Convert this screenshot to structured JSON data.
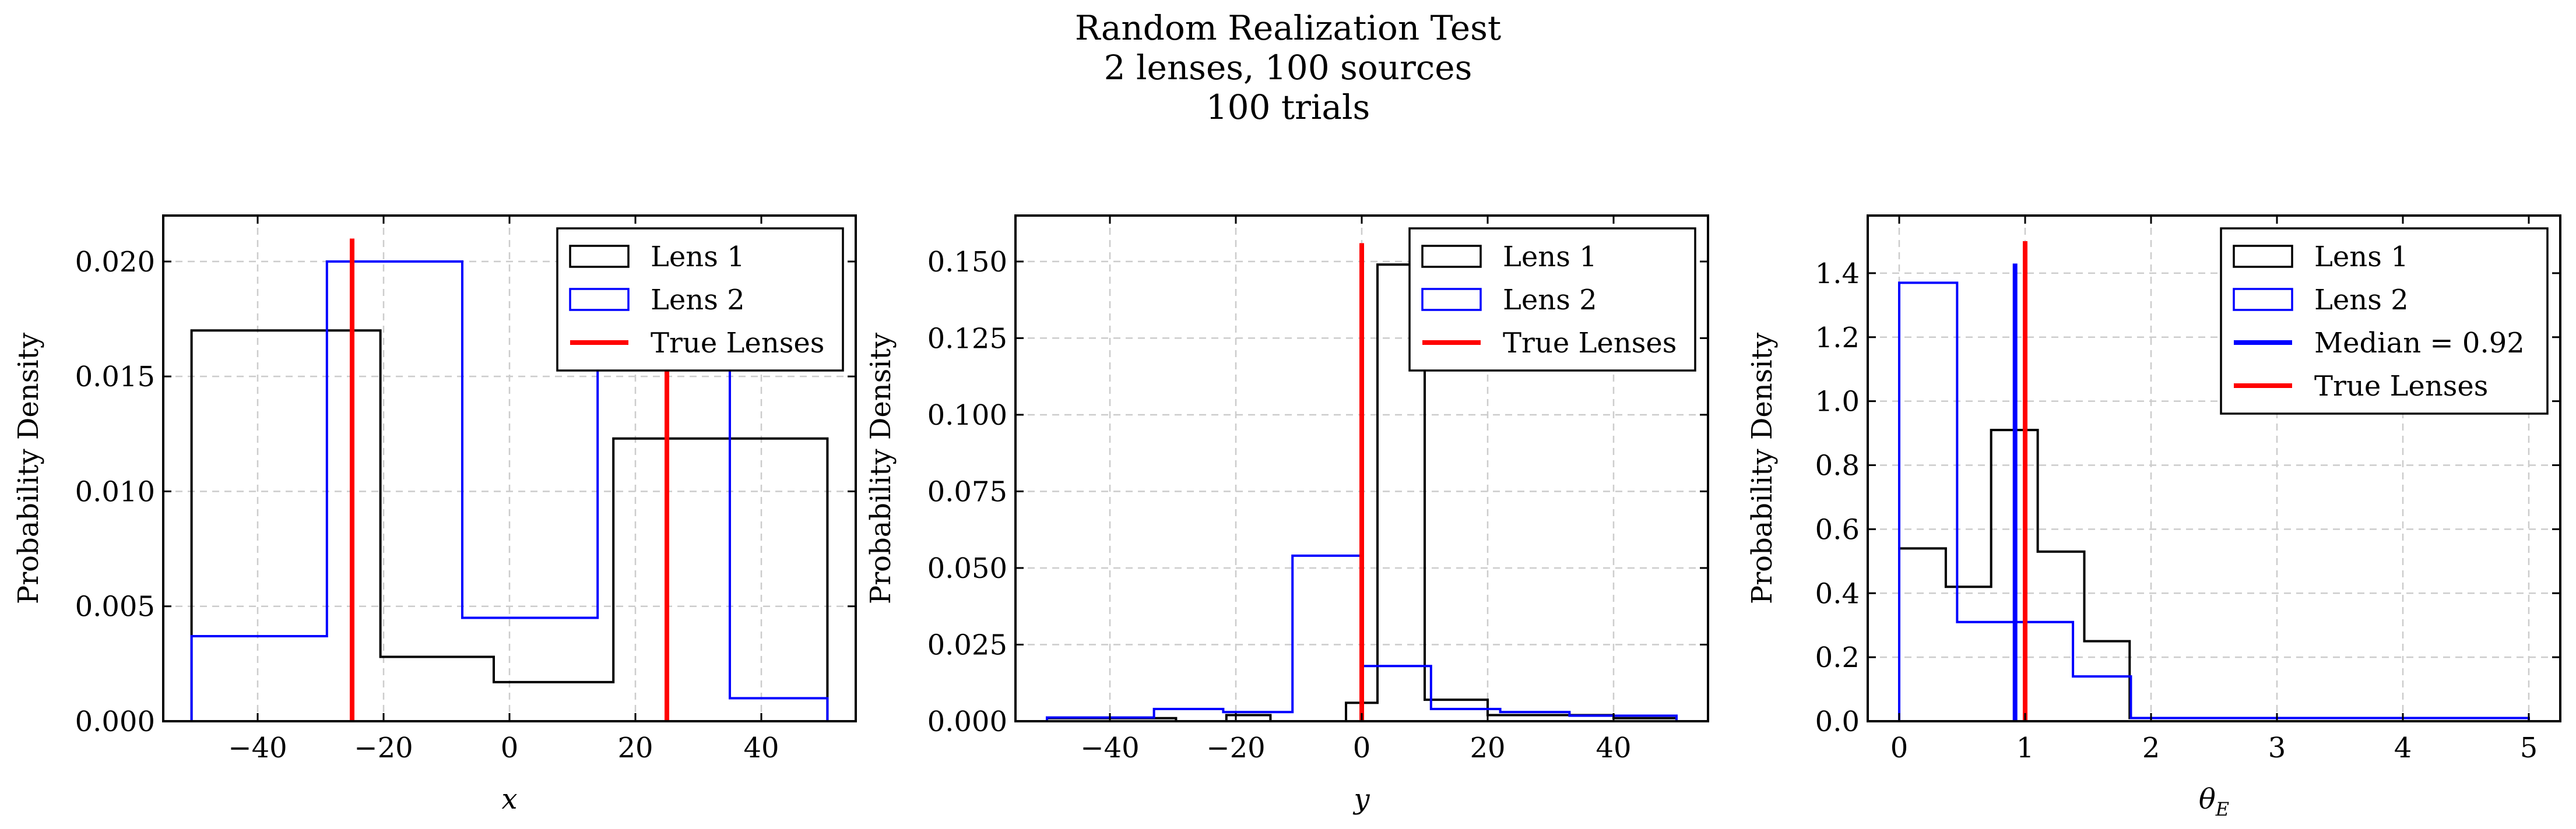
{
  "figure": {
    "title_lines": [
      "Random Realization Test",
      "2 lenses, 100 sources",
      "100 trials"
    ]
  },
  "chart_data": [
    {
      "type": "histogram",
      "xlabel": "x",
      "ylabel": "Probability Density",
      "xlim": [
        -55,
        55
      ],
      "ylim": [
        0,
        0.022
      ],
      "xticks": [
        -40,
        -20,
        0,
        20,
        40
      ],
      "xtick_labels": [
        "−40",
        "−20",
        "0",
        "20",
        "40"
      ],
      "yticks": [
        0,
        0.005,
        0.01,
        0.015,
        0.02
      ],
      "ytick_labels": [
        "0.000",
        "0.005",
        "0.010",
        "0.015",
        "0.020"
      ],
      "grid": true,
      "legend_position": "upper right",
      "series": [
        {
          "name": "Lens 1",
          "color": "#000000",
          "edges": [
            -50.5,
            -20.5,
            -2.5,
            16.5,
            50.5
          ],
          "values": [
            0.017,
            0.0028,
            0.0017,
            0.0123
          ]
        },
        {
          "name": "Lens 2",
          "color": "#0000ff",
          "edges": [
            -50.5,
            -29,
            -7.5,
            14,
            35,
            50.5
          ],
          "values": [
            0.0037,
            0.02,
            0.0045,
            0.02,
            0.001
          ]
        }
      ],
      "vlines": [
        {
          "name": "True Lenses",
          "color": "#ff0000",
          "x": [
            -25,
            25
          ],
          "ymax": 0.021
        }
      ],
      "legend": [
        {
          "label": "Lens 1",
          "kind": "patch",
          "color": "#000000"
        },
        {
          "label": "Lens 2",
          "kind": "patch",
          "color": "#0000ff"
        },
        {
          "label": "True Lenses",
          "kind": "line",
          "color": "#ff0000"
        }
      ]
    },
    {
      "type": "histogram",
      "xlabel": "y",
      "ylabel": "Probability Density",
      "xlim": [
        -55,
        55
      ],
      "ylim": [
        0,
        0.165
      ],
      "xticks": [
        -40,
        -20,
        0,
        20,
        40
      ],
      "xtick_labels": [
        "−40",
        "−20",
        "0",
        "20",
        "40"
      ],
      "yticks": [
        0,
        0.025,
        0.05,
        0.075,
        0.1,
        0.125,
        0.15
      ],
      "ytick_labels": [
        "0.000",
        "0.025",
        "0.050",
        "0.075",
        "0.100",
        "0.125",
        "0.150"
      ],
      "grid": true,
      "legend_position": "upper right",
      "series": [
        {
          "name": "Lens 1",
          "color": "#000000",
          "edges": [
            -50,
            -29.5,
            -21.5,
            -14.5,
            -2.5,
            2.5,
            10,
            20,
            30,
            40,
            50
          ],
          "values": [
            0.001,
            0.0,
            0.002,
            0.0,
            0.006,
            0.149,
            0.007,
            0.002,
            0.002,
            0.001
          ]
        },
        {
          "name": "Lens 2",
          "color": "#0000ff",
          "edges": [
            -50,
            -33,
            -22,
            -11,
            0,
            11,
            22,
            33,
            50
          ],
          "values": [
            0.0012,
            0.004,
            0.003,
            0.054,
            0.018,
            0.004,
            0.003,
            0.0018
          ]
        }
      ],
      "vlines": [
        {
          "name": "True Lenses",
          "color": "#ff0000",
          "x": [
            0
          ],
          "ymax": 0.156
        }
      ],
      "legend": [
        {
          "label": "Lens 1",
          "kind": "patch",
          "color": "#000000"
        },
        {
          "label": "Lens 2",
          "kind": "patch",
          "color": "#0000ff"
        },
        {
          "label": "True Lenses",
          "kind": "line",
          "color": "#ff0000"
        }
      ]
    },
    {
      "type": "histogram",
      "xlabel": "θE",
      "xlabel_main": "θ",
      "xlabel_sub": "E",
      "ylabel": "Probability Density",
      "xlim": [
        -0.25,
        5.25
      ],
      "ylim": [
        0,
        1.58
      ],
      "xticks": [
        0,
        1,
        2,
        3,
        4,
        5
      ],
      "xtick_labels": [
        "0",
        "1",
        "2",
        "3",
        "4",
        "5"
      ],
      "yticks": [
        0,
        0.2,
        0.4,
        0.6,
        0.8,
        1.0,
        1.2,
        1.4
      ],
      "ytick_labels": [
        "0.0",
        "0.2",
        "0.4",
        "0.6",
        "0.8",
        "1.0",
        "1.2",
        "1.4"
      ],
      "grid": true,
      "legend_position": "upper right",
      "series": [
        {
          "name": "Lens 1",
          "color": "#000000",
          "edges": [
            0,
            0.37,
            0.73,
            1.1,
            1.47,
            1.83,
            5.0
          ],
          "values": [
            0.54,
            0.42,
            0.91,
            0.53,
            0.25,
            0.01
          ]
        },
        {
          "name": "Lens 2",
          "color": "#0000ff",
          "edges": [
            0,
            0.46,
            0.92,
            1.38,
            1.84,
            5.0
          ],
          "values": [
            1.37,
            0.31,
            0.31,
            0.14,
            0.01
          ]
        }
      ],
      "vlines": [
        {
          "name": "Median = 0.92",
          "color": "#0000ff",
          "x": [
            0.92
          ],
          "ymax": 1.43
        },
        {
          "name": "True Lenses",
          "color": "#ff0000",
          "x": [
            1.0
          ],
          "ymax": 1.5
        }
      ],
      "legend": [
        {
          "label": "Lens 1",
          "kind": "patch",
          "color": "#000000"
        },
        {
          "label": "Lens 2",
          "kind": "patch",
          "color": "#0000ff"
        },
        {
          "label": "Median = 0.92",
          "kind": "line",
          "color": "#0000ff"
        },
        {
          "label": "True Lenses",
          "kind": "line",
          "color": "#ff0000"
        }
      ]
    }
  ]
}
